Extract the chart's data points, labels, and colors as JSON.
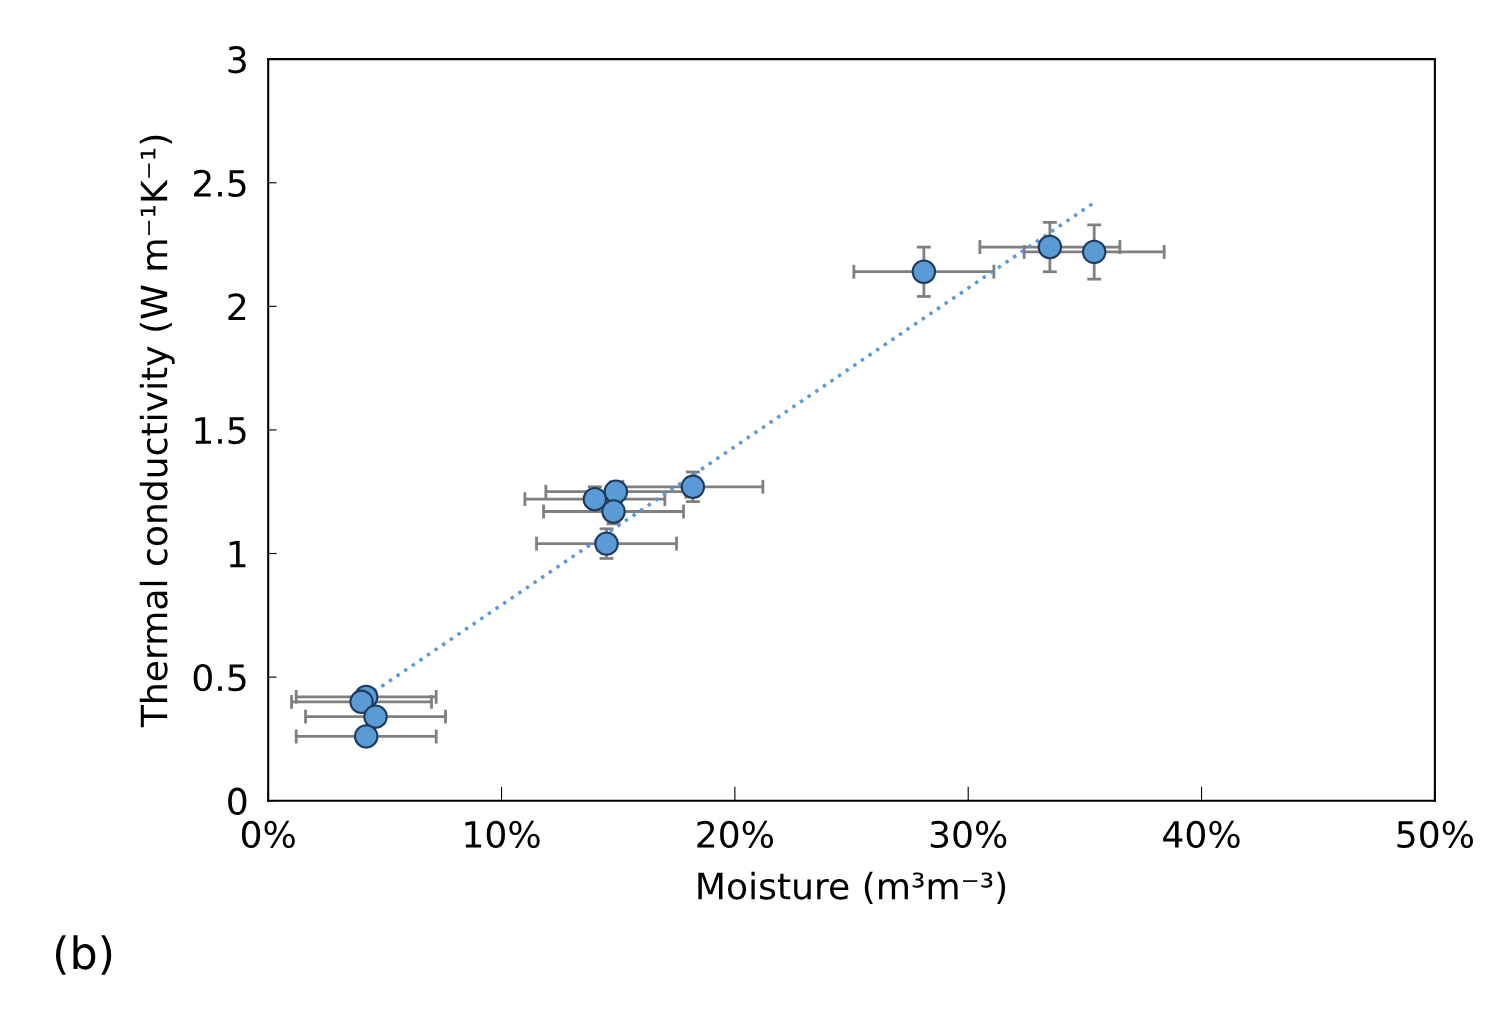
{
  "chart_data": {
    "type": "scatter",
    "xlabel": "Moisture (m³m⁻³)",
    "ylabel": "Thermal conductivity (W m⁻¹K⁻¹)",
    "xlim": [
      0,
      50
    ],
    "xticks": [
      {
        "value": 0,
        "label": "0%"
      },
      {
        "value": 10,
        "label": "10%"
      },
      {
        "value": 20,
        "label": "20%"
      },
      {
        "value": 30,
        "label": "30%"
      },
      {
        "value": 40,
        "label": "40%"
      },
      {
        "value": 50,
        "label": "50%"
      }
    ],
    "ylim": [
      0,
      3
    ],
    "yticks": [
      {
        "value": 0,
        "label": "0"
      },
      {
        "value": 0.5,
        "label": "0.5"
      },
      {
        "value": 1,
        "label": "1"
      },
      {
        "value": 1.5,
        "label": "1.5"
      },
      {
        "value": 2,
        "label": "2"
      },
      {
        "value": 2.5,
        "label": "2.5"
      },
      {
        "value": 3,
        "label": "3"
      }
    ],
    "grid": false,
    "series": [
      {
        "marker": "circle",
        "color": "#5b9bd5",
        "x": [
          4.2,
          4.0,
          4.6,
          4.2,
          14.0,
          14.9,
          14.8,
          18.2,
          14.5,
          28.1,
          33.5,
          35.4
        ],
        "values": [
          0.42,
          0.4,
          0.34,
          0.26,
          1.22,
          1.25,
          1.17,
          1.27,
          1.04,
          2.14,
          2.24,
          2.22
        ],
        "xerrors": [
          3,
          3,
          3,
          3,
          3,
          3,
          3,
          3,
          3,
          3,
          3,
          3
        ],
        "errors": [
          null,
          null,
          null,
          null,
          0.05,
          0.04,
          0.05,
          0.06,
          0.06,
          0.1,
          0.1,
          0.11
        ]
      },
      {
        "type": "line",
        "marker": "none",
        "color": "#5b9bd5",
        "line_style": "dotted",
        "x": [
          4.2,
          35.4
        ],
        "values": [
          0.42,
          2.42
        ]
      }
    ],
    "annotations": [
      "(b)"
    ]
  }
}
